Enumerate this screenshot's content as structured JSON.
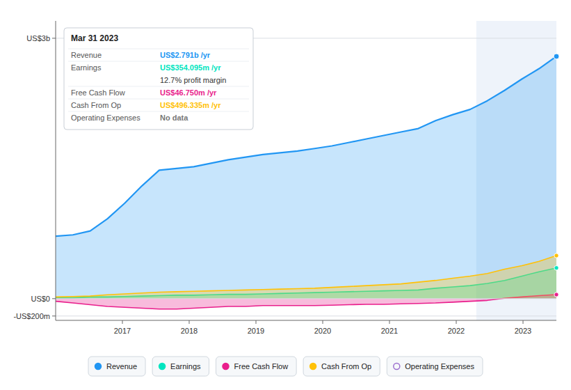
{
  "chart_data": {
    "type": "area",
    "x": [
      2016,
      2016.2586206896551,
      2016.5172413793102,
      2016.7758620689656,
      2017.0344827586207,
      2017.2931034482758,
      2017.551724137931,
      2017.8103448275863,
      2018.0689655172414,
      2018.3275862068965,
      2018.5862068965516,
      2018.844827586207,
      2019.103448275862,
      2019.3620689655172,
      2019.6206896551723,
      2019.8793103448277,
      2020.1379310344828,
      2020.396551724138,
      2020.655172413793,
      2020.9137931034484,
      2021.1724137931035,
      2021.4310344827586,
      2021.6896551724137,
      2021.948275862069,
      2022.2068965517242,
      2022.4655172413793,
      2022.7241379310344,
      2022.9827586206898,
      2023.2413793103449,
      2023.5
    ],
    "xlim": [
      2016.0,
      2023.5
    ],
    "xticks": [
      2017,
      2018,
      2019,
      2020,
      2021,
      2022,
      2023
    ],
    "ylim": [
      -0.25,
      3.2
    ],
    "yticks": [
      {
        "value": -0.2,
        "label": "-US$200m"
      },
      {
        "value": 0,
        "label": "US$0"
      },
      {
        "value": 3,
        "label": "US$3b"
      }
    ],
    "grid": true,
    "legend": "bottom",
    "highlight_range": [
      2022.3,
      2023.5
    ],
    "series": [
      {
        "name": "Revenue",
        "color": "#2196f3",
        "values": [
          0.72,
          0.735,
          0.78,
          0.92,
          1.1,
          1.3,
          1.48,
          1.5,
          1.52,
          1.56,
          1.6,
          1.63,
          1.66,
          1.68,
          1.7,
          1.73,
          1.76,
          1.8,
          1.84,
          1.88,
          1.92,
          1.96,
          2.05,
          2.12,
          2.18,
          2.28,
          2.4,
          2.53,
          2.65,
          2.791
        ]
      },
      {
        "name": "Earnings",
        "color": "#00e5c0",
        "values": [
          0.01,
          0.01,
          0.02,
          0.02,
          0.025,
          0.03,
          0.035,
          0.04,
          0.04,
          0.045,
          0.05,
          0.05,
          0.055,
          0.06,
          0.065,
          0.07,
          0.075,
          0.08,
          0.085,
          0.09,
          0.095,
          0.1,
          0.12,
          0.135,
          0.15,
          0.175,
          0.21,
          0.26,
          0.31,
          0.354
        ]
      },
      {
        "name": "Free Cash Flow",
        "color": "#e91e8c",
        "values": [
          -0.03,
          -0.05,
          -0.07,
          -0.09,
          -0.1,
          -0.11,
          -0.12,
          -0.12,
          -0.11,
          -0.1,
          -0.09,
          -0.09,
          -0.08,
          -0.08,
          -0.08,
          -0.08,
          -0.075,
          -0.07,
          -0.065,
          -0.065,
          -0.06,
          -0.055,
          -0.05,
          -0.04,
          -0.03,
          -0.02,
          0.005,
          0.02,
          0.035,
          0.04675
        ]
      },
      {
        "name": "Cash From Op",
        "color": "#ffc107",
        "values": [
          0.02,
          0.025,
          0.03,
          0.045,
          0.055,
          0.065,
          0.075,
          0.08,
          0.085,
          0.09,
          0.095,
          0.1,
          0.105,
          0.11,
          0.115,
          0.12,
          0.13,
          0.14,
          0.15,
          0.16,
          0.17,
          0.19,
          0.21,
          0.235,
          0.26,
          0.29,
          0.34,
          0.38,
          0.43,
          0.496
        ]
      },
      {
        "name": "Operating Expenses",
        "color": "#9c6fce",
        "values": [
          null,
          null,
          null,
          null,
          null,
          null,
          null,
          null,
          null,
          null,
          null,
          null,
          null,
          null,
          null,
          null,
          null,
          null,
          null,
          null,
          null,
          null,
          null,
          null,
          null,
          null,
          null,
          null,
          null,
          null
        ]
      }
    ],
    "tooltip": {
      "title": "Mar 31 2023",
      "rows": [
        {
          "label": "Revenue",
          "value": "US$2.791b /yr"
        },
        {
          "label": "Earnings",
          "value": "US$354.095m /yr",
          "note": "12.7% profit margin"
        },
        {
          "label": "Free Cash Flow",
          "value": "US$46.750m /yr"
        },
        {
          "label": "Cash From Op",
          "value": "US$496.335m /yr"
        },
        {
          "label": "Operating Expenses",
          "value": "No data"
        }
      ]
    }
  }
}
